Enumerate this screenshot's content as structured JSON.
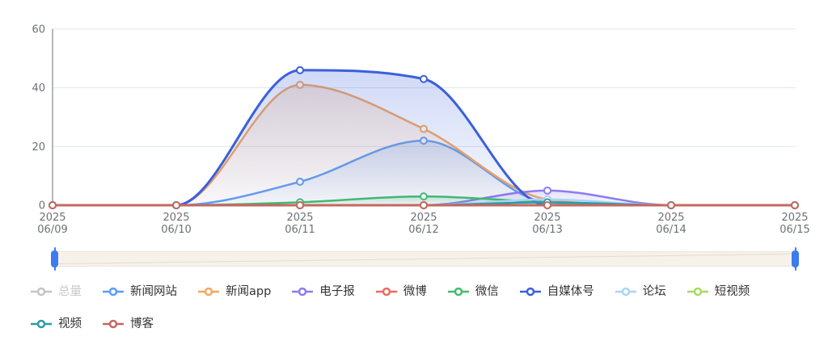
{
  "chart_data": {
    "type": "line",
    "smooth": true,
    "title": "",
    "xlabel": "",
    "ylabel": "",
    "grid": true,
    "legend_position": "bottom",
    "ylim": [
      0,
      60
    ],
    "yticks": [
      0,
      20,
      40,
      60
    ],
    "x_tick_labels": [
      [
        "2025",
        "06/09"
      ],
      [
        "2025",
        "06/10"
      ],
      [
        "2025",
        "06/11"
      ],
      [
        "2025",
        "06/12"
      ],
      [
        "2025",
        "06/13"
      ],
      [
        "2025",
        "06/14"
      ],
      [
        "2025",
        "06/15"
      ]
    ],
    "series": [
      {
        "name": "总量",
        "color": "#C4C4C4",
        "visible": false,
        "values": []
      },
      {
        "name": "新闻网站",
        "color": "#5B9DF8",
        "visible": true,
        "values": [
          0,
          0,
          8,
          22,
          1,
          0,
          0
        ]
      },
      {
        "name": "新闻app",
        "color": "#F8A75D",
        "visible": true,
        "values": [
          0,
          0,
          41,
          26,
          2,
          0,
          0
        ]
      },
      {
        "name": "电子报",
        "color": "#8B7CF0",
        "visible": true,
        "values": [
          0,
          0,
          0,
          0,
          5,
          0,
          0
        ]
      },
      {
        "name": "微博",
        "color": "#F0695E",
        "visible": true,
        "values": [
          0,
          0,
          0,
          0,
          0,
          0,
          0
        ]
      },
      {
        "name": "微信",
        "color": "#41BB70",
        "visible": true,
        "values": [
          0,
          0,
          1,
          3,
          1,
          0,
          0
        ]
      },
      {
        "name": "自媒体号",
        "color": "#3A60DC",
        "visible": true,
        "values": [
          0,
          0,
          46,
          43,
          0,
          0,
          0
        ],
        "line_width": 3
      },
      {
        "name": "论坛",
        "color": "#A9D5F5",
        "visible": true,
        "values": [
          0,
          0,
          0,
          0,
          2,
          0,
          0
        ]
      },
      {
        "name": "短视频",
        "color": "#A5DB60",
        "visible": true,
        "values": [
          0,
          0,
          0,
          0,
          0,
          0,
          0
        ]
      },
      {
        "name": "视频",
        "color": "#2E9BA6",
        "visible": true,
        "values": [
          0,
          0,
          0,
          0,
          1,
          0,
          0
        ]
      },
      {
        "name": "博客",
        "color": "#C4695F",
        "visible": true,
        "values": [
          0,
          0,
          0,
          0,
          0,
          0,
          0
        ],
        "line_width": 3
      }
    ]
  },
  "colors": {
    "axis_line": "#6E7079",
    "grid_line": "#E0E6F1",
    "tick_label": "#6E7079",
    "legend_text": "#333333",
    "legend_disabled_text": "#C8C8C8"
  },
  "data_zoom": {
    "track_color": "#F6F1E9",
    "track_border": "#ECE5DA",
    "handle_color": "#3D7BF0",
    "preview_line_color": "#E3DCD1"
  }
}
